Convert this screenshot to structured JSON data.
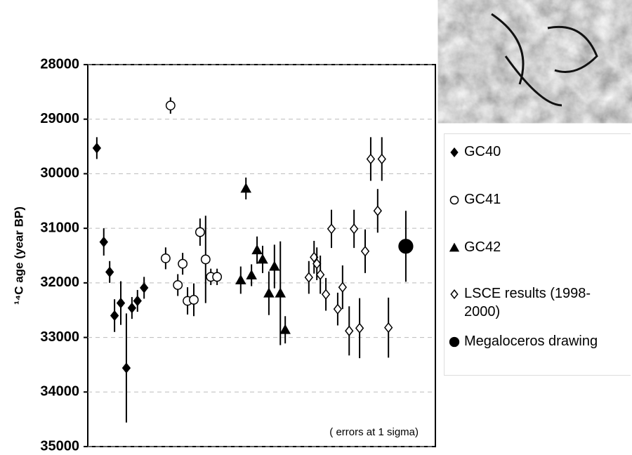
{
  "chart_data": {
    "type": "errorbar-scatter",
    "y_label": "¹⁴C age (year BP)",
    "annotation": "( errors at 1 sigma)",
    "ylim": [
      28000,
      35000
    ],
    "y_inverted": true,
    "yticks": [
      28000,
      29000,
      30000,
      31000,
      32000,
      33000,
      34000,
      35000
    ],
    "xlim": [
      0,
      100
    ],
    "grid": true,
    "legend": "right",
    "series": [
      {
        "name": "GC40",
        "color": "#000000",
        "marker": "diamond",
        "filled": true,
        "x": [
          2.6,
          4.6,
          6.3,
          7.7,
          9.5,
          11.1,
          12.7,
          14.3,
          16.2
        ],
        "values": [
          29530,
          31250,
          31800,
          32600,
          32370,
          33560,
          32460,
          32330,
          32090
        ],
        "errors": [
          200,
          250,
          200,
          300,
          400,
          1000,
          200,
          200,
          200
        ]
      },
      {
        "name": "GC41",
        "color": "#000000",
        "marker": "circle",
        "filled": false,
        "x": [
          23.8,
          22.4,
          25.9,
          27.3,
          28.7,
          30.5,
          32.3,
          33.9,
          35.4,
          37.2
        ],
        "values": [
          28750,
          31550,
          32040,
          31650,
          32330,
          32310,
          31070,
          31570,
          31890,
          31890
        ],
        "errors": [
          150,
          200,
          200,
          200,
          250,
          300,
          250,
          800,
          150,
          150
        ]
      },
      {
        "name": "GC42",
        "color": "#000000",
        "marker": "triangle",
        "filled": true,
        "x": [
          44.0,
          45.5,
          47.1,
          48.7,
          50.3,
          52.1,
          53.7,
          55.4,
          56.8
        ],
        "values": [
          31950,
          30270,
          31860,
          31400,
          31570,
          32190,
          31700,
          32190,
          32860
        ],
        "errors": [
          250,
          200,
          200,
          250,
          250,
          400,
          400,
          950,
          250
        ]
      },
      {
        "name": "LSCE results (1998-2000)",
        "color": "#000000",
        "marker": "diamond",
        "filled": false,
        "x": [
          63.6,
          65.1,
          65.9,
          66.9,
          68.5,
          70.1,
          71.9,
          73.3,
          75.2,
          76.6,
          78.2,
          79.8,
          81.4,
          83.4,
          84.6,
          86.5
        ],
        "values": [
          31900,
          31530,
          31650,
          31850,
          32210,
          31010,
          32480,
          32080,
          32880,
          31010,
          32830,
          31420,
          29730,
          30680,
          29730,
          32820
        ],
        "errors": [
          300,
          300,
          300,
          350,
          300,
          350,
          300,
          400,
          450,
          350,
          550,
          400,
          400,
          400,
          400,
          550
        ]
      },
      {
        "name": "Megaloceros drawing",
        "color": "#000000",
        "marker": "circle",
        "filled": true,
        "size": 1.6,
        "x": [
          91.5
        ],
        "values": [
          31330
        ],
        "errors": [
          650
        ]
      }
    ]
  }
}
